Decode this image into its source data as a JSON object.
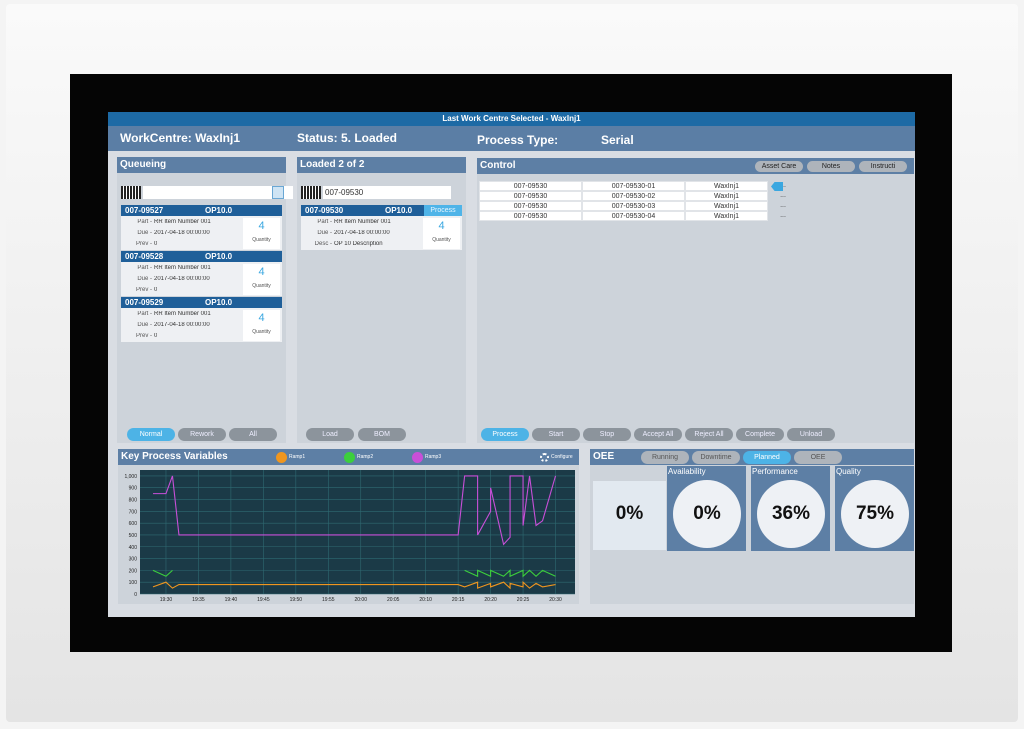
{
  "header": {
    "title": "Last Work Centre Selected - WaxInj1",
    "work_centre": "WorkCentre: WaxInj1",
    "status": "Status: 5. Loaded",
    "process_type_label": "Process Type:",
    "process_type": "Serial"
  },
  "queueing": {
    "title": "Queueing",
    "items": [
      {
        "id": "007-09527",
        "op": "OP10.0",
        "part_label": "Part -",
        "part": "RR Item Number 001",
        "due_label": "Due -",
        "due": "2017-04-18 00:00:00",
        "prev_label": "Prev -",
        "prev": 0,
        "quantity": 4,
        "quantity_label": "Quantity"
      },
      {
        "id": "007-09528",
        "op": "OP10.0",
        "part_label": "Part -",
        "part": "RR Item Number 001",
        "due_label": "Due -",
        "due": "2017-04-18 00:00:00",
        "prev_label": "Prev -",
        "prev": 0,
        "quantity": 4,
        "quantity_label": "Quantity"
      },
      {
        "id": "007-09529",
        "op": "OP10.0",
        "part_label": "Part -",
        "part": "RR Item Number 001",
        "due_label": "Due -",
        "due": "2017-04-18 00:00:00",
        "prev_label": "Prev -",
        "prev": 0,
        "quantity": 4,
        "quantity_label": "Quantity"
      }
    ],
    "buttons": [
      "Normal",
      "Rework",
      "All"
    ]
  },
  "loaded": {
    "title": "Loaded   2  of  2",
    "barcode": "007-09530",
    "item": {
      "id": "007-09530",
      "op": "OP10.0",
      "tag": "Process",
      "part_label": "Part -",
      "part": "RR Item Number 001",
      "due_label": "Due -",
      "due": "2017-04-18 00:00:00",
      "desc_label": "Desc -",
      "desc": "OP 10 Description",
      "quantity": 4,
      "quantity_label": "Quantity"
    },
    "buttons": [
      "Load",
      "BOM"
    ]
  },
  "control": {
    "title": "Control",
    "tools": [
      "Asset Care",
      "Notes",
      "Instructi"
    ],
    "rows": [
      [
        "007-09530",
        "007-09530-01",
        "WaxInj1",
        "..."
      ],
      [
        "007-09530",
        "007-09530-02",
        "WaxInj1",
        "..."
      ],
      [
        "007-09530",
        "007-09530-03",
        "WaxInj1",
        "..."
      ],
      [
        "007-09530",
        "007-09530-04",
        "WaxInj1",
        "..."
      ]
    ],
    "buttons": [
      "Process",
      "Start",
      "Stop",
      "Accept All",
      "Reject All",
      "Complete",
      "Unload"
    ]
  },
  "process_variables": {
    "title": "Key Process Variables",
    "configure": "Configure",
    "chart": {
      "type": "line",
      "x": [
        "19:28",
        "19:30",
        "19:31",
        "19:32",
        "19:35",
        "19:45",
        "19:55",
        "20:05",
        "20:15",
        "20:16",
        "20:18",
        "20:18",
        "20:20",
        "20:20",
        "20:22",
        "20:23",
        "20:23",
        "20:25",
        "20:25",
        "20:26",
        "20:27",
        "20:28",
        "20:30"
      ],
      "series": [
        {
          "name": "Ramp1",
          "color": "#f0961e",
          "values": [
            60,
            100,
            50,
            80,
            80,
            80,
            80,
            80,
            80,
            60,
            100,
            50,
            90,
            60,
            100,
            50,
            90,
            60,
            100,
            50,
            90,
            60,
            80
          ]
        },
        {
          "name": "Ramp2",
          "color": "#3ccf3c",
          "values": [
            200,
            150,
            200,
            null,
            null,
            null,
            null,
            null,
            null,
            200,
            150,
            200,
            150,
            200,
            150,
            200,
            150,
            200,
            150,
            200,
            150,
            200,
            150
          ]
        },
        {
          "name": "Ramp3",
          "color": "#c84fd8",
          "values": [
            850,
            850,
            1000,
            500,
            500,
            500,
            500,
            500,
            500,
            1000,
            1000,
            500,
            700,
            900,
            420,
            480,
            1000,
            1000,
            580,
            1000,
            580,
            620,
            1000
          ]
        }
      ],
      "xlim": [
        "19:26",
        "20:33"
      ],
      "xticks": [
        "19:30",
        "19:35",
        "19:40",
        "19:45",
        "19:50",
        "19:55",
        "20:00",
        "20:05",
        "20:10",
        "20:15",
        "20:20",
        "20:25",
        "20:30"
      ],
      "ylim": [
        0,
        1050
      ],
      "yticks": [
        0,
        100,
        200,
        300,
        400,
        500,
        600,
        700,
        800,
        900,
        {
          "value": 1000,
          "label": "1,000"
        }
      ],
      "grid": true
    }
  },
  "oee": {
    "title": "OEE",
    "tabs": [
      "Running",
      "Downtime",
      "Planned",
      "OEE"
    ],
    "tiles": [
      {
        "value": "0%"
      },
      {
        "label": "Availability",
        "value": "0%"
      },
      {
        "label": "Performance",
        "value": "36%"
      },
      {
        "label": "Quality",
        "value": "75%"
      }
    ]
  }
}
